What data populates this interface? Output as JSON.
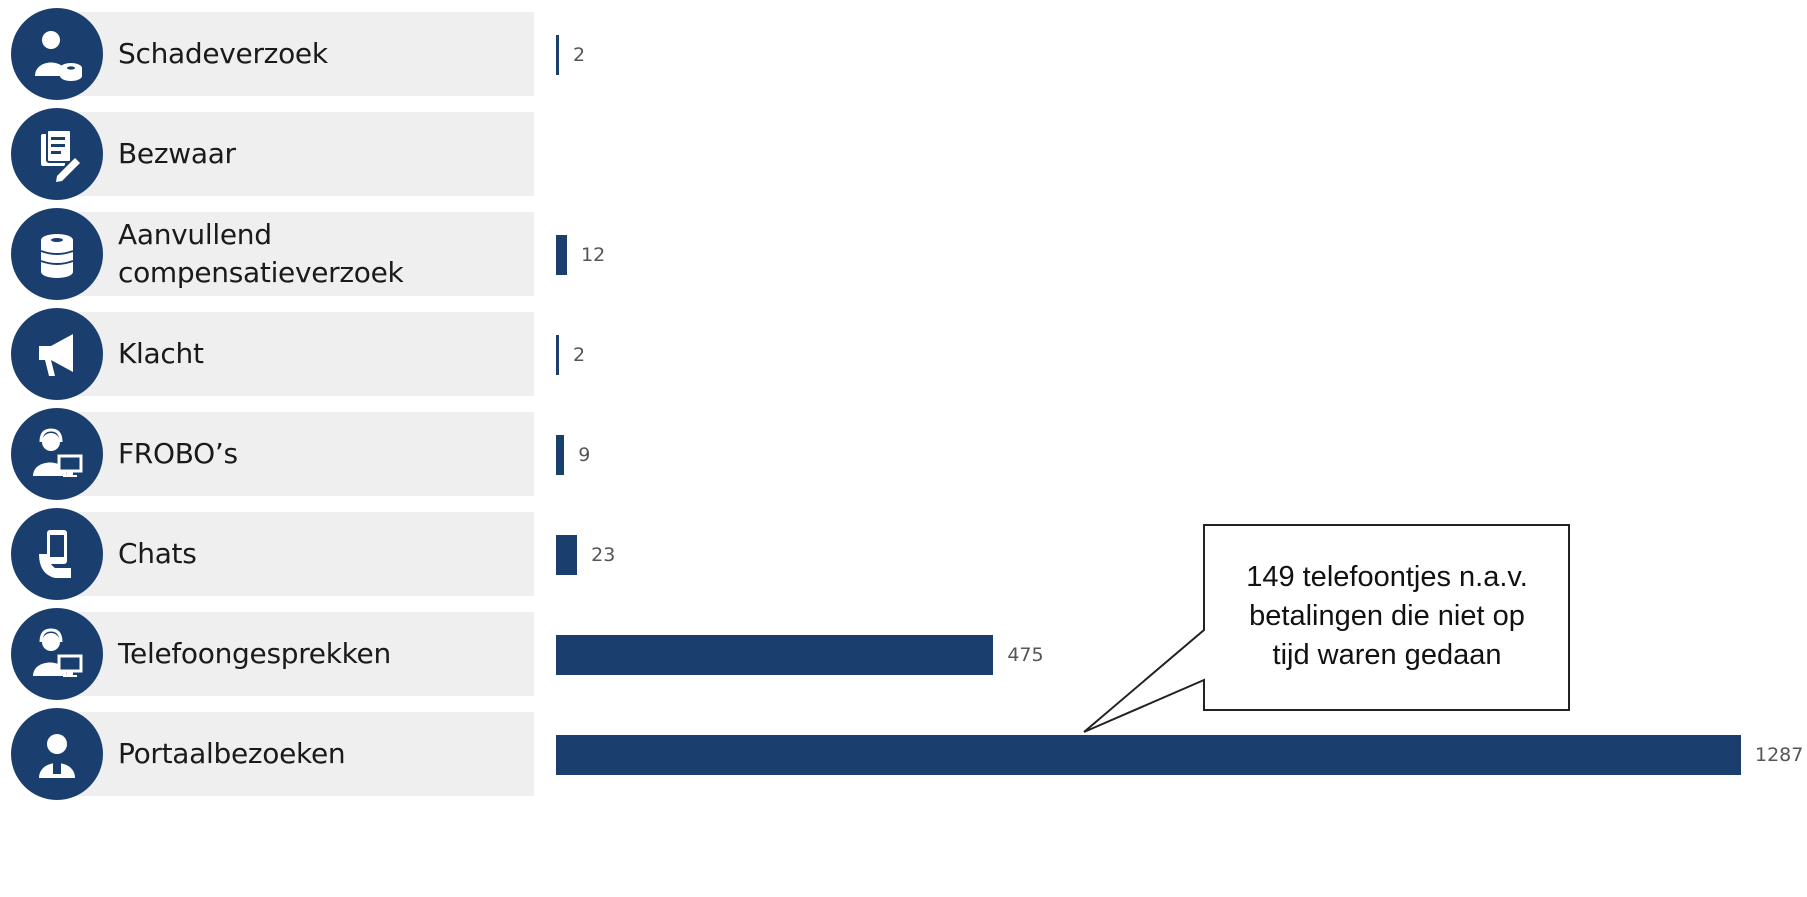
{
  "chart_data": {
    "type": "bar",
    "orientation": "horizontal",
    "categories": [
      "Schadeverzoek",
      "Bezwaar",
      "Aanvullend compensatieverzoek",
      "Klacht",
      "FROBO’s",
      "Chats",
      "Telefoongesprekken",
      "Portaalbezoeken"
    ],
    "category_lines": [
      [
        "Schadeverzoek"
      ],
      [
        "Bezwaar"
      ],
      [
        "Aanvullend",
        "compensatieverzoek"
      ],
      [
        "Klacht"
      ],
      [
        "FROBO’s"
      ],
      [
        "Chats"
      ],
      [
        "Telefoongesprekken"
      ],
      [
        "Portaalbezoeken"
      ]
    ],
    "values": [
      2,
      null,
      12,
      2,
      9,
      23,
      475,
      1287
    ],
    "value_labels": [
      "2",
      "",
      "12",
      "2",
      "9",
      "23",
      "475",
      "1287"
    ],
    "icons": [
      "person-coins-icon",
      "document-pen-icon",
      "coin-stack-icon",
      "megaphone-icon",
      "agent-computer-icon",
      "hand-phone-icon",
      "agent-computer-icon",
      "portal-user-icon"
    ],
    "annotation": {
      "lines": [
        "149 telefoontjes n.a.v.",
        "betalingen die niet op",
        "tijd waren gedaan"
      ],
      "points_to": "Telefoongesprekken"
    },
    "title": "",
    "xlabel": "",
    "ylabel": "",
    "xlim": [
      0,
      1287
    ],
    "grid": false,
    "legend": "none",
    "colors": {
      "bar": "#1a3e6e",
      "icon_bg": "#1a3e6e",
      "label_bg": "#efefef",
      "value_text": "#555555"
    }
  }
}
